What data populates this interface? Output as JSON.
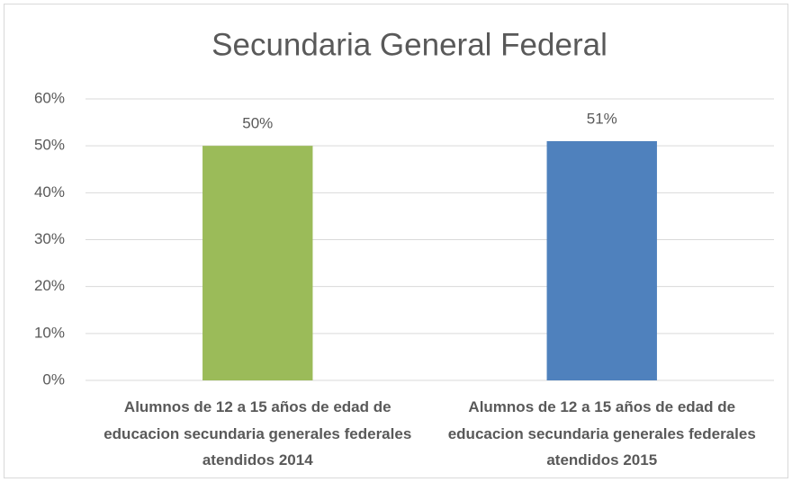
{
  "chart_data": {
    "type": "bar",
    "title": "Secundaria General Federal",
    "categories": [
      "Alumnos de 12 a 15 años de edad de educacion secundaria generales federales atendidos 2014",
      "Alumnos de 12 a 15 años de edad de educacion secundaria generales federales atendidos 2015"
    ],
    "values": [
      50,
      51
    ],
    "value_labels": [
      "50%",
      "51%"
    ],
    "colors": [
      "#9bbb59",
      "#4f81bd"
    ],
    "ylim": [
      0,
      60
    ],
    "yticks": [
      {
        "value": 0,
        "label": "0%"
      },
      {
        "value": 10,
        "label": "10%"
      },
      {
        "value": 20,
        "label": "20%"
      },
      {
        "value": 30,
        "label": "30%"
      },
      {
        "value": 40,
        "label": "40%"
      },
      {
        "value": 50,
        "label": "50%"
      },
      {
        "value": 60,
        "label": "60%"
      }
    ],
    "grid": true
  }
}
